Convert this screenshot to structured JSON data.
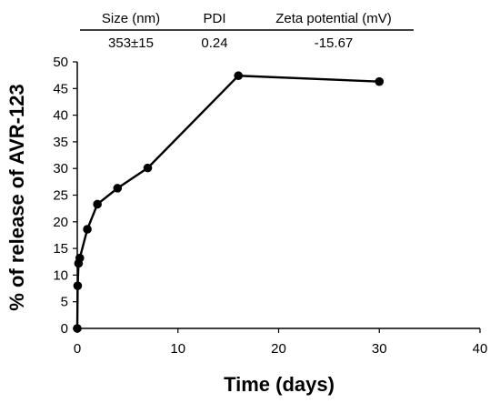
{
  "table": {
    "headers": [
      "Size (nm)",
      "PDI",
      "Zeta potential (mV)"
    ],
    "values": [
      "353±15",
      "0.24",
      "-15.67"
    ]
  },
  "chart_data": {
    "type": "line",
    "title": "",
    "xlabel": "Time (days)",
    "ylabel": "% of release of AVR-123",
    "xlim": [
      0,
      40
    ],
    "ylim": [
      0,
      50
    ],
    "xticks": [
      0,
      10,
      20,
      30,
      40
    ],
    "yticks": [
      0,
      5,
      10,
      15,
      20,
      25,
      30,
      35,
      40,
      45,
      50
    ],
    "grid": false,
    "legend": "none",
    "series": [
      {
        "x": [
          0,
          0.04,
          0.125,
          0.25,
          1,
          2,
          4,
          7,
          16,
          30
        ],
        "y": [
          0,
          8,
          12.2,
          13.2,
          18.6,
          23.3,
          26.3,
          30.1,
          47.4,
          46.3
        ]
      }
    ],
    "line_color": "#000000"
  }
}
